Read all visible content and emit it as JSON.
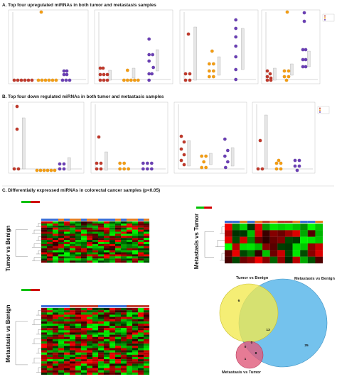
{
  "figure": {
    "section_a_title": "A. Top four upregulated miRNAs in both tumor and metastasis samples",
    "section_b_title": "B. Top four down regulated miRNAs in both tumor and metastasis samples",
    "section_c_title": "C. Differentially expressed miRNAs in colorectal cancer samples (p<0.05)",
    "heatmap_tb_label": "Tumor vs Benign",
    "heatmap_mb_label": "Metastasis vs Benign",
    "heatmap_mt_label": "Metastasis vs Tumor",
    "colors": {
      "benign": "#c0392b",
      "tumor": "#f39c12",
      "metastasis": "#6a3fb4",
      "venn_tb": "#f2e94e",
      "venn_mb": "#56b4e9",
      "venn_mt": "#e05a7a"
    }
  },
  "venn": {
    "sets": [
      "Tumor vs Benign",
      "Metastasis vs Benign",
      "Metastasis vs Tumor"
    ],
    "label_tb": "Tumor vs Benign",
    "label_mb": "Metastasis vs Benign",
    "label_mt": "Metastasis vs Tumor",
    "regions": {
      "tb_only": "6",
      "mb_only": "25",
      "mt_only": "1",
      "tb_mb": "13",
      "tb_mt": "0",
      "mb_mt": "8",
      "all": "0"
    }
  }
}
